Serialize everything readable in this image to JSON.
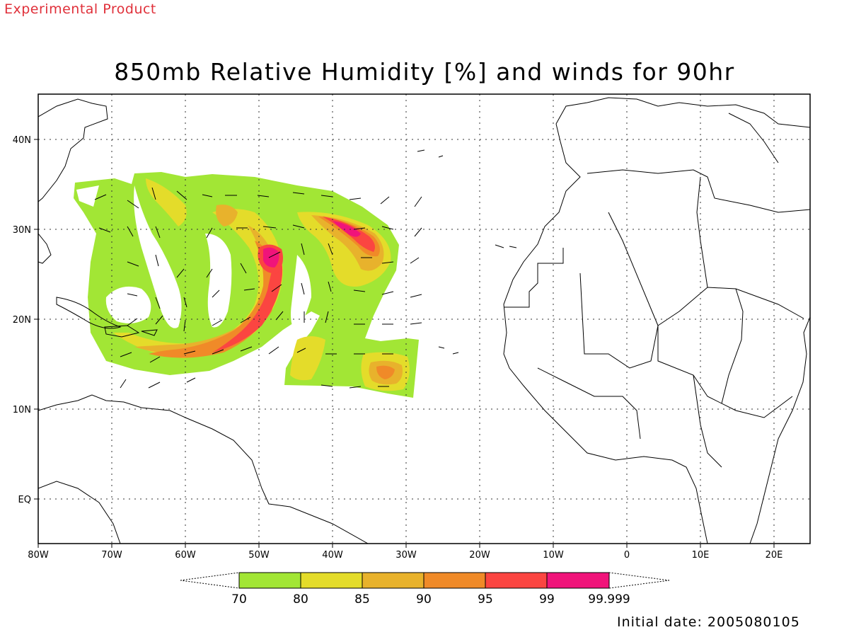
{
  "header": {
    "product_tag": "Experimental Product",
    "title": "850mb Relative Humidity [%] and winds for 90hr"
  },
  "footer": {
    "initial_date": "Initial date: 2005080105"
  },
  "map": {
    "lon_range": [
      -80,
      25
    ],
    "lat_range": [
      -5,
      45
    ],
    "lon_ticks": [
      "80W",
      "70W",
      "60W",
      "50W",
      "40W",
      "30W",
      "20W",
      "10W",
      "0",
      "10E",
      "20E"
    ],
    "lat_ticks": [
      "40N",
      "30N",
      "20N",
      "10N",
      "EQ"
    ],
    "grid": "dotted"
  },
  "legend": {
    "labels": [
      "70",
      "80",
      "85",
      "90",
      "95",
      "99",
      "99.999"
    ],
    "colors": [
      "#a2e635",
      "#e4dc2a",
      "#e8b22c",
      "#f08a28",
      "#fb4541",
      "#f0147a"
    ]
  }
}
